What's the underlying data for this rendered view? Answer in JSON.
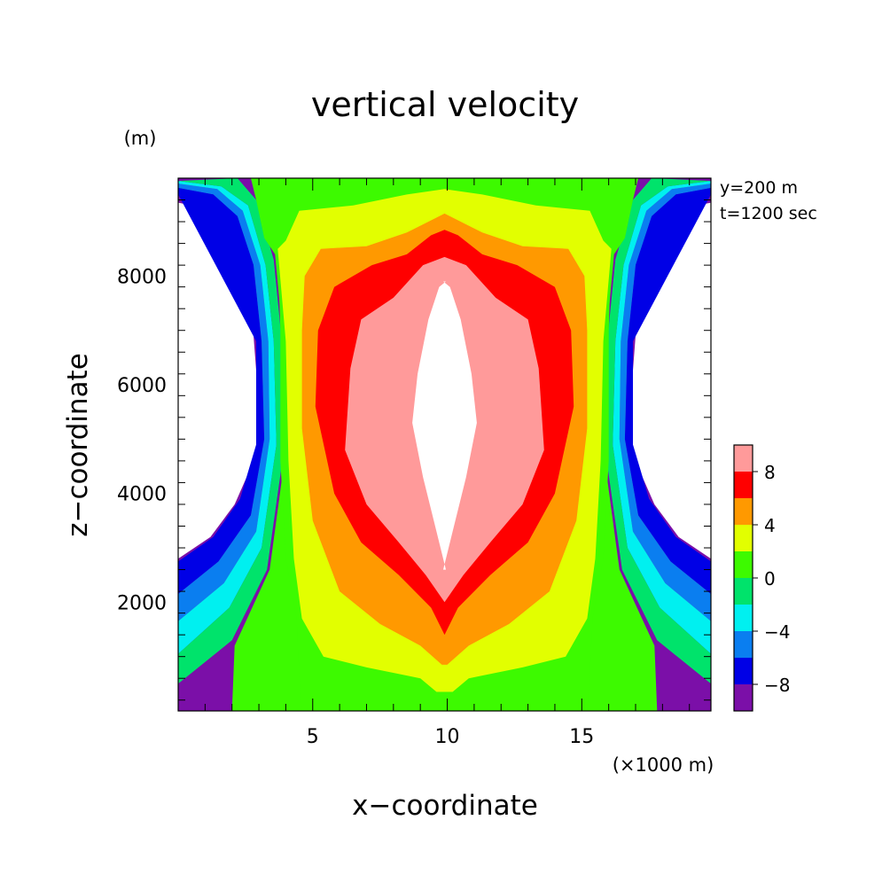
{
  "chart_data": {
    "type": "heatmap",
    "title": "vertical velocity",
    "xlabel": "x−coordinate",
    "ylabel": "z−coordinate",
    "x_unit": "(×1000 m)",
    "y_unit": "(m)",
    "info_lines": [
      "y=200 m",
      "t=1200 sec"
    ],
    "xlim": [
      0,
      19.8
    ],
    "ylim": [
      0,
      9800
    ],
    "x_ticks": [
      5,
      10,
      15
    ],
    "x_tick_labels": [
      "5",
      "10",
      "15"
    ],
    "y_ticks": [
      2000,
      4000,
      6000,
      8000
    ],
    "y_tick_labels": [
      "2000",
      "4000",
      "6000",
      "8000"
    ],
    "grid": false,
    "colorbar": {
      "position": "right",
      "range": [
        -10,
        10
      ],
      "levels": [
        -10,
        -8,
        -6,
        -4,
        -2,
        0,
        2,
        4,
        6,
        8,
        10
      ],
      "colors": [
        "#7b0fa8",
        "#0000e6",
        "#0a7ef0",
        "#00f0f0",
        "#00e36b",
        "#3dfa00",
        "#e2ff00",
        "#ff9900",
        "#ff0000",
        "#ff9a9a"
      ],
      "tick_values": [
        8,
        4,
        0,
        -4,
        -8
      ],
      "tick_labels": [
        "8",
        "4",
        "0",
        "−4",
        "−8"
      ]
    }
  }
}
